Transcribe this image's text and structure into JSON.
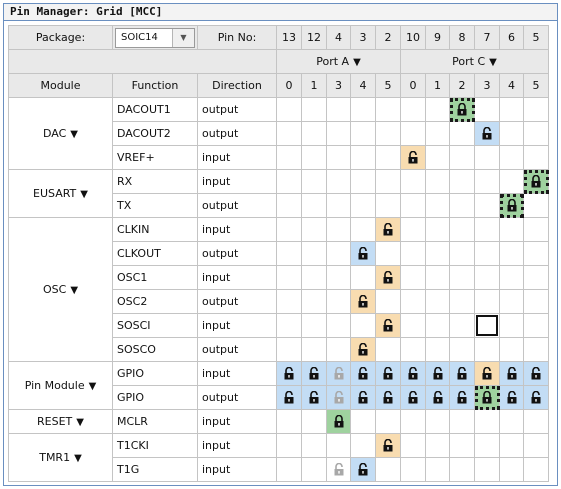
{
  "window": {
    "title": "Pin Manager: Grid [MCC]"
  },
  "header": {
    "package_label": "Package:",
    "package_value": "SOIC14",
    "pin_no_label": "Pin No:",
    "pin_numbers": [
      "13",
      "12",
      "4",
      "3",
      "2",
      "10",
      "9",
      "8",
      "7",
      "6",
      "5"
    ],
    "port_a_label": "Port A",
    "port_c_label": "Port C",
    "col_module": "Module",
    "col_function": "Function",
    "col_direction": "Direction",
    "bit_numbers": [
      "0",
      "1",
      "3",
      "4",
      "5",
      "0",
      "1",
      "2",
      "3",
      "4",
      "5"
    ]
  },
  "modules": [
    {
      "name": "DAC",
      "rows": [
        {
          "function": "DACOUT1",
          "direction": "output",
          "cells": [
            "",
            "",
            "",
            "",
            "",
            "",
            "",
            "G",
            "",
            "",
            ""
          ]
        },
        {
          "function": "DACOUT2",
          "direction": "output",
          "cells": [
            "",
            "",
            "",
            "",
            "",
            "",
            "",
            "",
            "B",
            "",
            ""
          ]
        },
        {
          "function": "VREF+",
          "direction": "input",
          "cells": [
            "",
            "",
            "",
            "",
            "",
            "O",
            "",
            "",
            "",
            "",
            ""
          ]
        }
      ]
    },
    {
      "name": "EUSART",
      "rows": [
        {
          "function": "RX",
          "direction": "input",
          "cells": [
            "",
            "",
            "",
            "",
            "",
            "",
            "",
            "",
            "",
            "",
            "G"
          ]
        },
        {
          "function": "TX",
          "direction": "output",
          "cells": [
            "",
            "",
            "",
            "",
            "",
            "",
            "",
            "",
            "",
            "G",
            ""
          ]
        }
      ]
    },
    {
      "name": "OSC",
      "rows": [
        {
          "function": "CLKIN",
          "direction": "input",
          "cells": [
            "",
            "",
            "",
            "",
            "O",
            "",
            "",
            "",
            "",
            "",
            ""
          ]
        },
        {
          "function": "CLKOUT",
          "direction": "output",
          "cells": [
            "",
            "",
            "",
            "B",
            "",
            "",
            "",
            "",
            "",
            "",
            ""
          ]
        },
        {
          "function": "OSC1",
          "direction": "input",
          "cells": [
            "",
            "",
            "",
            "",
            "O",
            "",
            "",
            "",
            "",
            "",
            ""
          ]
        },
        {
          "function": "OSC2",
          "direction": "output",
          "cells": [
            "",
            "",
            "",
            "O",
            "",
            "",
            "",
            "",
            "",
            "",
            ""
          ]
        },
        {
          "function": "SOSCI",
          "direction": "input",
          "cells": [
            "",
            "",
            "",
            "",
            "O",
            "",
            "",
            "",
            "S",
            "",
            ""
          ]
        },
        {
          "function": "SOSCO",
          "direction": "output",
          "cells": [
            "",
            "",
            "",
            "O",
            "",
            "",
            "",
            "",
            "",
            "",
            ""
          ]
        }
      ]
    },
    {
      "name": "Pin Module",
      "rows": [
        {
          "function": "GPIO",
          "direction": "input",
          "cells": [
            "B",
            "B",
            "BG",
            "B",
            "B",
            "B",
            "B",
            "B",
            "O",
            "B",
            "B"
          ]
        },
        {
          "function": "GPIO",
          "direction": "output",
          "cells": [
            "B",
            "B",
            "BG",
            "B",
            "B",
            "B",
            "B",
            "B",
            "G",
            "B",
            "B"
          ]
        }
      ]
    },
    {
      "name": "RESET",
      "rows": [
        {
          "function": "MCLR",
          "direction": "input",
          "cells": [
            "",
            "",
            "P",
            "",
            "",
            "",
            "",
            "",
            "",
            "",
            ""
          ]
        }
      ]
    },
    {
      "name": "TMR1",
      "rows": [
        {
          "function": "T1CKI",
          "direction": "input",
          "cells": [
            "",
            "",
            "",
            "",
            "O",
            "",
            "",
            "",
            "",
            "",
            ""
          ]
        },
        {
          "function": "T1G",
          "direction": "input",
          "cells": [
            "",
            "",
            "W",
            "B",
            "",
            "",
            "",
            "",
            "",
            "",
            ""
          ]
        }
      ]
    }
  ],
  "colors": {
    "blue": "#c3ddf5",
    "orange": "#f8dcb0",
    "green": "#9fd29f"
  }
}
